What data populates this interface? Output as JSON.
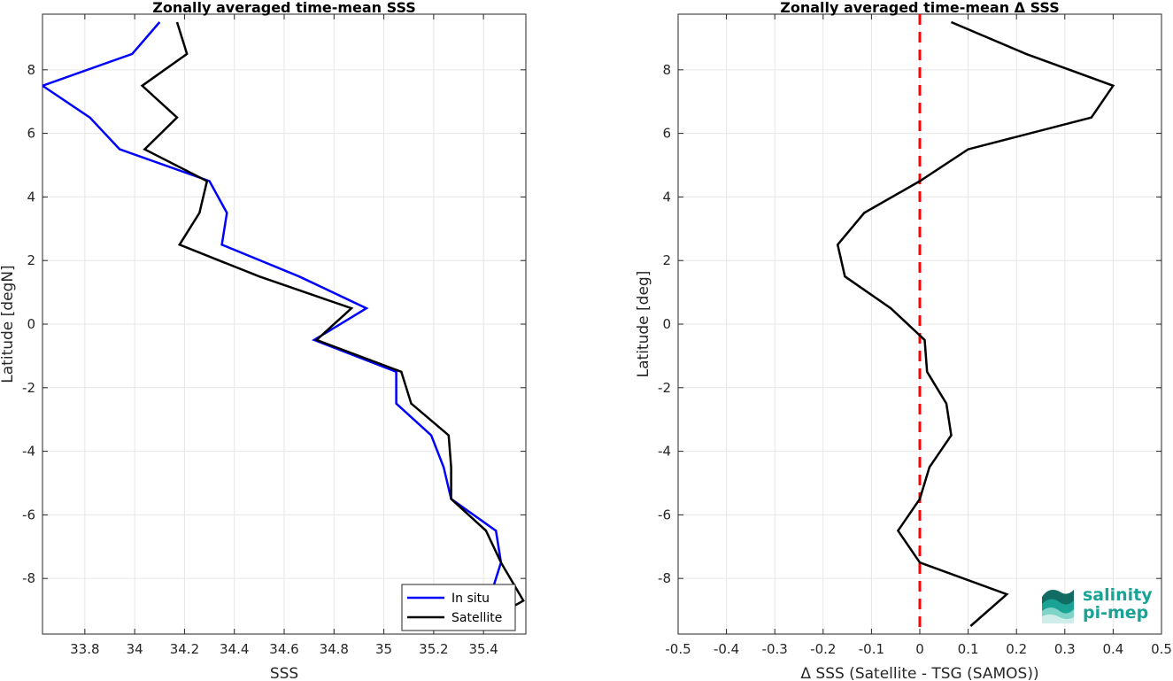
{
  "chart_data": [
    {
      "type": "line",
      "title": "Zonally averaged time-mean SSS",
      "xlabel": "SSS",
      "ylabel": "Latitude [degN]",
      "xlim": [
        33.63,
        35.57
      ],
      "ylim": [
        -9.75,
        9.75
      ],
      "xticks": [
        33.8,
        34,
        34.2,
        34.4,
        34.6,
        34.8,
        35,
        35.2,
        35.4
      ],
      "yticks": [
        -8,
        -6,
        -4,
        -2,
        0,
        2,
        4,
        6,
        8
      ],
      "grid": true,
      "legend_position": "bottom-right",
      "series": [
        {
          "name": "In situ",
          "color": "#0000ff",
          "points": [
            [
              34.1,
              9.5
            ],
            [
              33.99,
              8.5
            ],
            [
              33.63,
              7.5
            ],
            [
              33.82,
              6.5
            ],
            [
              33.94,
              5.5
            ],
            [
              34.3,
              4.5
            ],
            [
              34.37,
              3.5
            ],
            [
              34.35,
              2.5
            ],
            [
              34.66,
              1.5
            ],
            [
              34.93,
              0.5
            ],
            [
              34.72,
              -0.5
            ],
            [
              35.05,
              -1.5
            ],
            [
              35.05,
              -2.5
            ],
            [
              35.19,
              -3.5
            ],
            [
              35.24,
              -4.5
            ],
            [
              35.27,
              -5.5
            ],
            [
              35.45,
              -6.5
            ],
            [
              35.47,
              -7.5
            ],
            [
              35.43,
              -8.5
            ],
            [
              35.32,
              -9.5
            ]
          ]
        },
        {
          "name": "Satellite",
          "color": "#000000",
          "points": [
            [
              34.17,
              9.5
            ],
            [
              34.21,
              8.5
            ],
            [
              34.03,
              7.5
            ],
            [
              34.17,
              6.5
            ],
            [
              34.04,
              5.5
            ],
            [
              34.29,
              4.5
            ],
            [
              34.26,
              3.5
            ],
            [
              34.18,
              2.5
            ],
            [
              34.5,
              1.5
            ],
            [
              34.87,
              0.5
            ],
            [
              34.73,
              -0.5
            ],
            [
              35.07,
              -1.5
            ],
            [
              35.11,
              -2.5
            ],
            [
              35.26,
              -3.5
            ],
            [
              35.27,
              -4.5
            ],
            [
              35.27,
              -5.5
            ],
            [
              35.41,
              -6.5
            ],
            [
              35.47,
              -7.5
            ],
            [
              35.56,
              -8.7
            ],
            [
              35.38,
              -9.5
            ]
          ]
        }
      ]
    },
    {
      "type": "line",
      "title": "Zonally averaged time-mean Δ SSS",
      "xlabel": "Δ SSS (Satellite - TSG (SAMOS))",
      "ylabel": "Latitude [deg]",
      "xlim": [
        -0.5,
        0.5
      ],
      "ylim": [
        -9.75,
        9.75
      ],
      "xticks": [
        -0.5,
        -0.4,
        -0.3,
        -0.2,
        -0.1,
        0,
        0.1,
        0.2,
        0.3,
        0.4,
        0.5
      ],
      "yticks": [
        -8,
        -6,
        -4,
        -2,
        0,
        2,
        4,
        6,
        8
      ],
      "grid": true,
      "reference_line": {
        "x": 0,
        "color": "#ff0000",
        "style": "dashed"
      },
      "series": [
        {
          "color": "#000000",
          "points": [
            [
              0.065,
              9.5
            ],
            [
              0.22,
              8.5
            ],
            [
              0.4,
              7.5
            ],
            [
              0.355,
              6.5
            ],
            [
              0.1,
              5.5
            ],
            [
              0.0,
              4.5
            ],
            [
              -0.115,
              3.5
            ],
            [
              -0.17,
              2.5
            ],
            [
              -0.155,
              1.5
            ],
            [
              -0.06,
              0.5
            ],
            [
              0.01,
              -0.5
            ],
            [
              0.015,
              -1.5
            ],
            [
              0.055,
              -2.5
            ],
            [
              0.065,
              -3.5
            ],
            [
              0.02,
              -4.5
            ],
            [
              0.0,
              -5.5
            ],
            [
              -0.045,
              -6.5
            ],
            [
              0.0,
              -7.5
            ],
            [
              0.18,
              -8.5
            ],
            [
              0.105,
              -9.5
            ]
          ]
        }
      ]
    }
  ],
  "logo": {
    "line1": "salinity",
    "line2": "pi-mep",
    "color": "#1aa394"
  }
}
